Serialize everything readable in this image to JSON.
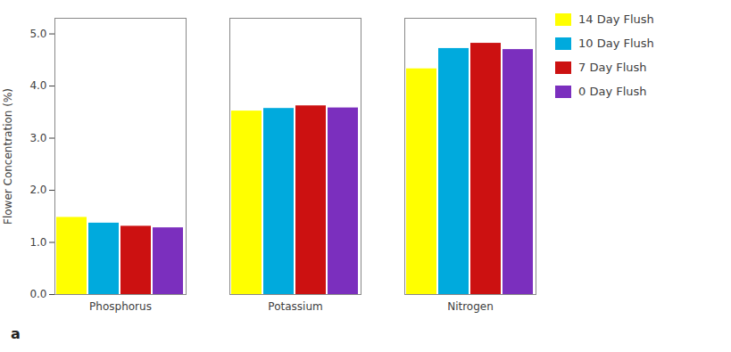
{
  "chart_data": {
    "type": "bar",
    "categories": [
      "Phosphorus",
      "Potassium",
      "Nitrogen"
    ],
    "series": [
      {
        "name": "14 Day Flush",
        "color": "#FFFF00",
        "values": [
          1.48,
          3.52,
          4.33
        ]
      },
      {
        "name": "10 Day Flush",
        "color": "#00AADD",
        "values": [
          1.37,
          3.57,
          4.72
        ]
      },
      {
        "name": "7 Day Flush",
        "color": "#CC1111",
        "values": [
          1.31,
          3.62,
          4.82
        ]
      },
      {
        "name": "0 Day Flush",
        "color": "#7B2FBE",
        "values": [
          1.28,
          3.58,
          4.7
        ]
      }
    ],
    "ylabel": "Flower Concentration (%)",
    "ylim": [
      0,
      5.3
    ],
    "yticks": [
      0,
      1,
      2,
      3,
      4,
      5
    ],
    "annotation": "a",
    "legend": "right",
    "grid": false
  }
}
